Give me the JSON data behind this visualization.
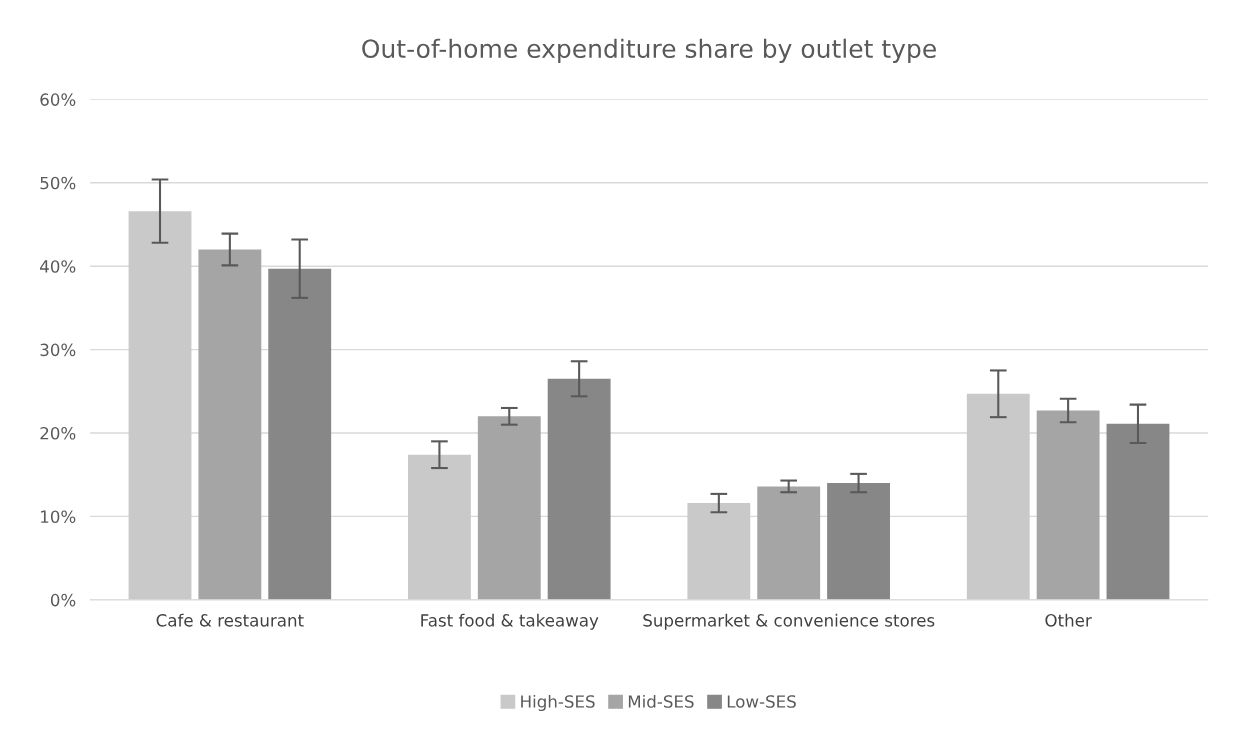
{
  "chart_data": {
    "type": "bar",
    "title": "Out-of-home expenditure share by outlet type",
    "categories": [
      "Cafe & restaurant",
      "Fast food & takeaway",
      "Supermarket & convenience stores",
      "Other"
    ],
    "series": [
      {
        "name": "High-SES",
        "color": "#c9c9c9",
        "values": [
          46.6,
          17.4,
          11.6,
          24.7
        ],
        "errors": [
          3.8,
          1.6,
          1.1,
          2.8
        ]
      },
      {
        "name": "Mid-SES",
        "color": "#a5a5a5",
        "values": [
          42.0,
          22.0,
          13.6,
          22.7
        ],
        "errors": [
          1.9,
          1.0,
          0.7,
          1.4
        ]
      },
      {
        "name": "Low-SES",
        "color": "#878787",
        "values": [
          39.7,
          26.5,
          14.0,
          21.1
        ],
        "errors": [
          3.5,
          2.1,
          1.1,
          2.3
        ]
      }
    ],
    "ylim": [
      0,
      60
    ],
    "yticks": [
      {
        "value": 0,
        "label": "0%"
      },
      {
        "value": 10,
        "label": "10%"
      },
      {
        "value": 20,
        "label": "20%"
      },
      {
        "value": 30,
        "label": "30%"
      },
      {
        "value": 40,
        "label": "40%"
      },
      {
        "value": 50,
        "label": "50%"
      },
      {
        "value": 60,
        "label": "60%"
      }
    ],
    "grid": "y",
    "legend": "bottom"
  }
}
